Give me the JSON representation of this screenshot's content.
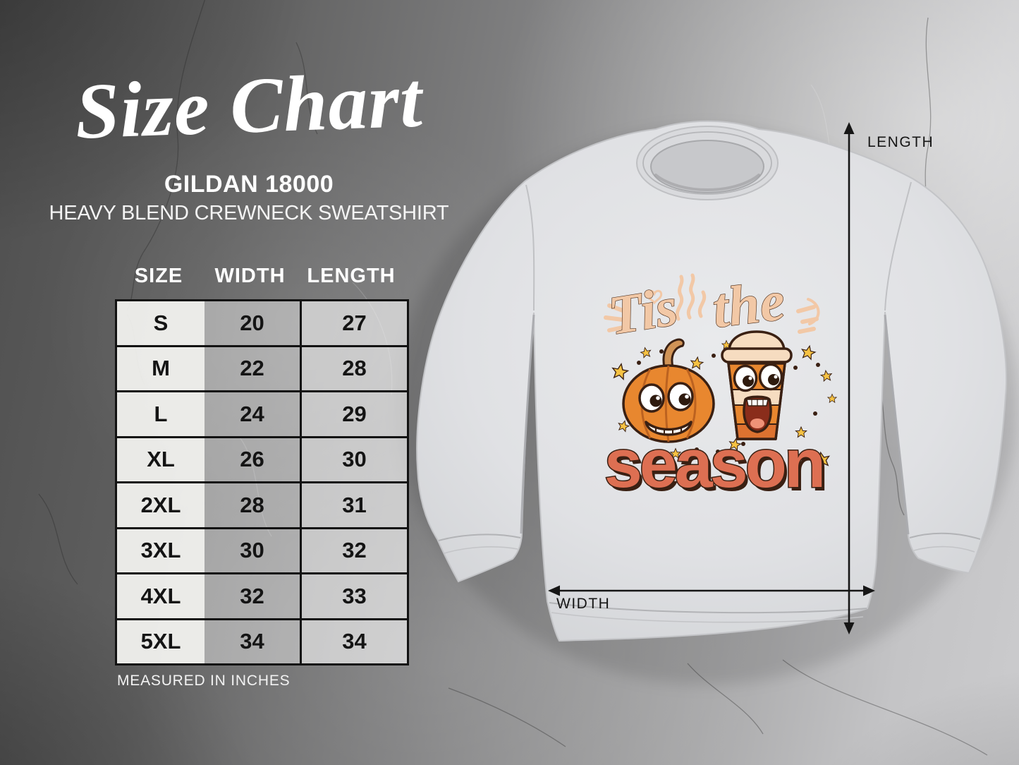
{
  "header": {
    "title": "Size Chart",
    "product_code": "GILDAN 18000",
    "product_name": "HEAVY BLEND CREWNECK SWEATSHIRT"
  },
  "chart_data": {
    "type": "table",
    "title": "Size Chart",
    "subtitle": "GILDAN 18000 Heavy Blend Crewneck Sweatshirt",
    "columns": [
      "SIZE",
      "WIDTH",
      "LENGTH"
    ],
    "rows": [
      [
        "S",
        "20",
        "27"
      ],
      [
        "M",
        "22",
        "28"
      ],
      [
        "L",
        "24",
        "29"
      ],
      [
        "XL",
        "26",
        "30"
      ],
      [
        "2XL",
        "28",
        "31"
      ],
      [
        "3XL",
        "30",
        "32"
      ],
      [
        "4XL",
        "32",
        "33"
      ],
      [
        "5XL",
        "34",
        "34"
      ]
    ],
    "units_note": "MEASURED IN INCHES"
  },
  "mockup": {
    "garment": "crewneck sweatshirt flat lay",
    "length_label": "LENGTH",
    "width_label": "WIDTH",
    "design": {
      "word1": "Tis",
      "word2": "the",
      "word3": "season"
    }
  },
  "colors": {
    "design_peach": "#f2c8a6",
    "design_orange": "#e8872f",
    "design_terracotta": "#dd6f52",
    "design_outline": "#3a2013",
    "star_gold": "#f6c243",
    "table_border": "#121212",
    "label_ink": "#161616"
  }
}
